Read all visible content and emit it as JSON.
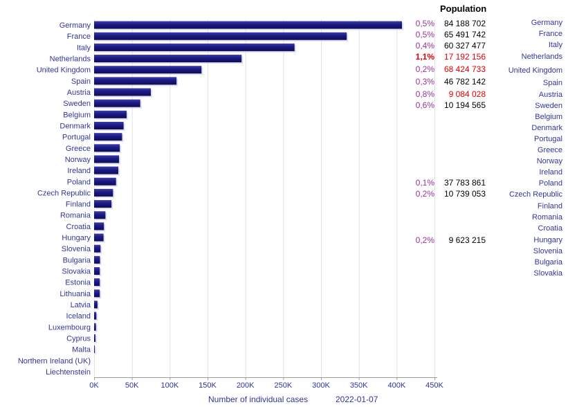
{
  "chart_data": {
    "type": "bar",
    "orientation": "horizontal",
    "categories": [
      "Germany",
      "France",
      "Italy",
      "Netherlands",
      "United Kingdom",
      "Spain",
      "Austria",
      "Sweden",
      "Belgium",
      "Denmark",
      "Portugal",
      "Greece",
      "Norway",
      "Ireland",
      "Poland",
      "Czech Republic",
      "Finland",
      "Romania",
      "Croatia",
      "Hungary",
      "Slovenia",
      "Bulgaria",
      "Slovakia",
      "Estonia",
      "Lithuania",
      "Latvia",
      "Iceland",
      "Luxembourg",
      "Cyprus",
      "Malta",
      "Northern Ireland (UK)",
      "Liechtenstein"
    ],
    "values": [
      407000,
      334000,
      265000,
      195000,
      142000,
      109000,
      75000,
      61000,
      43000,
      39000,
      37000,
      34000,
      33000,
      32000,
      29000,
      25000,
      23000,
      15000,
      13000,
      12500,
      8500,
      7800,
      7500,
      7500,
      7500,
      4500,
      3000,
      2500,
      1800,
      1000,
      0,
      0
    ],
    "xlim": [
      0,
      450000
    ],
    "xticks": [
      "0K",
      "50K",
      "100K",
      "150K",
      "200K",
      "250K",
      "300K",
      "350K",
      "400K",
      "450K"
    ],
    "xlabel": "Number of individual cases",
    "date": "2022-01-07",
    "grid": true,
    "bar_color": "#1a1a80"
  },
  "population_table": {
    "header": "Population",
    "left_rows": [
      {
        "pct": "0,5%",
        "pop": "84 188 702",
        "highlight": false
      },
      {
        "pct": "0,5%",
        "pop": "65 491 742",
        "highlight": false
      },
      {
        "pct": "0,4%",
        "pop": "60 327 477",
        "highlight": false
      },
      {
        "pct": "1,1%",
        "pop": "17 192 156",
        "highlight": true,
        "bold": true
      },
      {
        "pct": "0,2%",
        "pop": "68 424 733",
        "highlight": true
      },
      {
        "pct": "0,3%",
        "pop": "46 782 142",
        "highlight": false
      },
      {
        "pct": "0,8%",
        "pop": "9 084 028",
        "highlight": true
      },
      {
        "pct": "0,6%",
        "pop": "10 194 565",
        "highlight": false
      },
      {
        "pct": "0,1%",
        "pop": "37 783 861",
        "highlight": false
      },
      {
        "pct": "0,2%",
        "pop": "10 739 053",
        "highlight": false
      },
      {
        "pct": "0,2%",
        "pop": "9 623 215",
        "highlight": false
      }
    ],
    "countries": [
      "Germany",
      "France",
      "Italy",
      "Netherlands",
      "United Kingdom",
      "Spain",
      "Austria",
      "Sweden",
      "Belgium",
      "Denmark",
      "Portugal",
      "Greece",
      "Norway",
      "Ireland",
      "Poland",
      "Czech Republic",
      "Finland",
      "Romania",
      "Croatia",
      "Hungary",
      "Slovenia",
      "Bulgaria",
      "Slovakia"
    ],
    "colors": {
      "pct": "#993399",
      "pop": "#000000",
      "highlight": "#e60000",
      "country": "#333399"
    }
  }
}
